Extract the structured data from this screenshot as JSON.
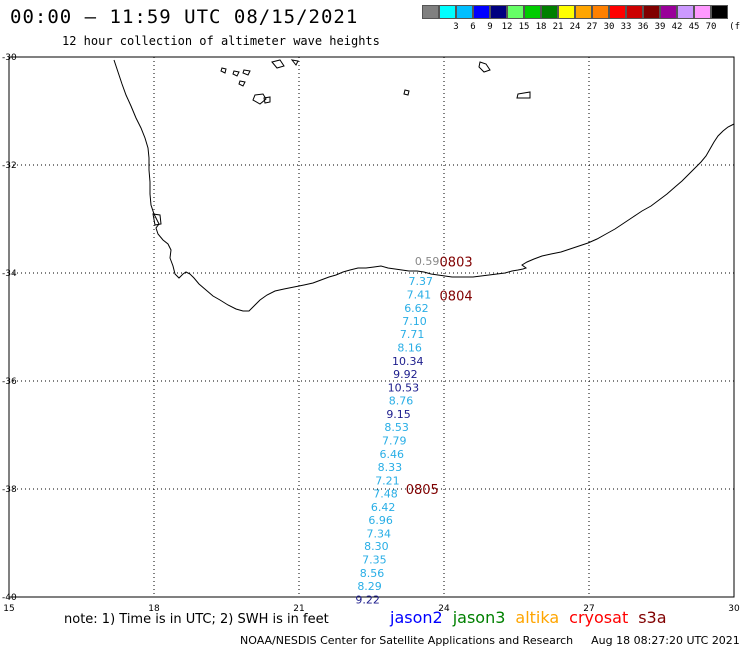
{
  "header": {
    "title": "00:00 — 11:59 UTC 08/15/2021",
    "subtitle": "12 hour collection of altimeter wave heights"
  },
  "legend": {
    "unit": "(ft)",
    "items": [
      {
        "label": "",
        "color": "#808080"
      },
      {
        "label": "3",
        "color": "#00ffff"
      },
      {
        "label": "6",
        "color": "#00bfff"
      },
      {
        "label": "9",
        "color": "#0000ff"
      },
      {
        "label": "12",
        "color": "#000080"
      },
      {
        "label": "15",
        "color": "#66ff66"
      },
      {
        "label": "18",
        "color": "#00cc00"
      },
      {
        "label": "21",
        "color": "#008000"
      },
      {
        "label": "24",
        "color": "#ffff00"
      },
      {
        "label": "27",
        "color": "#ffa500"
      },
      {
        "label": "30",
        "color": "#ff8000"
      },
      {
        "label": "33",
        "color": "#ff0000"
      },
      {
        "label": "36",
        "color": "#cc0000"
      },
      {
        "label": "39",
        "color": "#800000"
      },
      {
        "label": "42",
        "color": "#990099"
      },
      {
        "label": "45",
        "color": "#cc99ff"
      },
      {
        "label": "70",
        "color": "#ff99ff"
      },
      {
        "label": "",
        "color": "#000000"
      }
    ]
  },
  "axes": {
    "lat_labels": [
      "-30",
      "-32",
      "-34",
      "-36",
      "-38",
      "-40"
    ],
    "lon_labels": [
      "15",
      "18",
      "21",
      "24",
      "27",
      "30"
    ]
  },
  "observations": [
    {
      "value": "0.59",
      "lat": -33.78,
      "lon": 23.65,
      "color": "#888888"
    },
    {
      "value": "7.37",
      "lat": -34.15,
      "lon": 23.52,
      "color": "#29aee6"
    },
    {
      "value": "7.41",
      "lat": -34.4,
      "lon": 23.48,
      "color": "#29aee6"
    },
    {
      "value": "6.62",
      "lat": -34.65,
      "lon": 23.43,
      "color": "#29aee6"
    },
    {
      "value": "7.10",
      "lat": -34.89,
      "lon": 23.39,
      "color": "#29aee6"
    },
    {
      "value": "7.71",
      "lat": -35.13,
      "lon": 23.34,
      "color": "#29aee6"
    },
    {
      "value": "8.16",
      "lat": -35.38,
      "lon": 23.29,
      "color": "#29aee6"
    },
    {
      "value": "10.34",
      "lat": -35.63,
      "lon": 23.25,
      "color": "#1c1c8c"
    },
    {
      "value": "9.92",
      "lat": -35.87,
      "lon": 23.2,
      "color": "#1c1c8c"
    },
    {
      "value": "10.53",
      "lat": -36.12,
      "lon": 23.16,
      "color": "#1c1c8c"
    },
    {
      "value": "8.76",
      "lat": -36.36,
      "lon": 23.11,
      "color": "#29aee6"
    },
    {
      "value": "9.15",
      "lat": -36.61,
      "lon": 23.06,
      "color": "#1c1c8c"
    },
    {
      "value": "8.53",
      "lat": -36.85,
      "lon": 23.02,
      "color": "#29aee6"
    },
    {
      "value": "7.79",
      "lat": -37.1,
      "lon": 22.97,
      "color": "#29aee6"
    },
    {
      "value": "6.46",
      "lat": -37.35,
      "lon": 22.92,
      "color": "#29aee6"
    },
    {
      "value": "8.33",
      "lat": -37.59,
      "lon": 22.88,
      "color": "#29aee6"
    },
    {
      "value": "7.21",
      "lat": -37.84,
      "lon": 22.83,
      "color": "#29aee6"
    },
    {
      "value": "7.48",
      "lat": -38.08,
      "lon": 22.79,
      "color": "#29aee6"
    },
    {
      "value": "6.42",
      "lat": -38.33,
      "lon": 22.74,
      "color": "#29aee6"
    },
    {
      "value": "6.96",
      "lat": -38.57,
      "lon": 22.69,
      "color": "#29aee6"
    },
    {
      "value": "7.34",
      "lat": -38.82,
      "lon": 22.65,
      "color": "#29aee6"
    },
    {
      "value": "8.30",
      "lat": -39.06,
      "lon": 22.6,
      "color": "#29aee6"
    },
    {
      "value": "7.35",
      "lat": -39.31,
      "lon": 22.56,
      "color": "#29aee6"
    },
    {
      "value": "8.56",
      "lat": -39.56,
      "lon": 22.51,
      "color": "#29aee6"
    },
    {
      "value": "8.29",
      "lat": -39.8,
      "lon": 22.46,
      "color": "#29aee6"
    },
    {
      "value": "9.22",
      "lat": -40.05,
      "lon": 22.42,
      "color": "#1c1c8c"
    }
  ],
  "pass_times": [
    {
      "label": "0803",
      "lat": -33.79,
      "lon": 24.25,
      "color": "#800000"
    },
    {
      "label": "0804",
      "lat": -34.42,
      "lon": 24.25,
      "color": "#800000"
    },
    {
      "label": "0805",
      "lat": -38.0,
      "lon": 23.55,
      "color": "#800000"
    }
  ],
  "footer": {
    "note": "note: 1) Time is in UTC; 2) SWH is in feet",
    "satellites": [
      {
        "name": "jason2",
        "color": "#0000ff"
      },
      {
        "name": "jason3",
        "color": "#008000"
      },
      {
        "name": "altika",
        "color": "#ffa500"
      },
      {
        "name": "cryosat",
        "color": "#ff0000"
      },
      {
        "name": "s3a",
        "color": "#800000"
      }
    ],
    "credit": "NOAA/NESDIS Center for Satellite Applications and Research",
    "timestamp": "Aug 18 08:27:20 UTC 2021"
  }
}
